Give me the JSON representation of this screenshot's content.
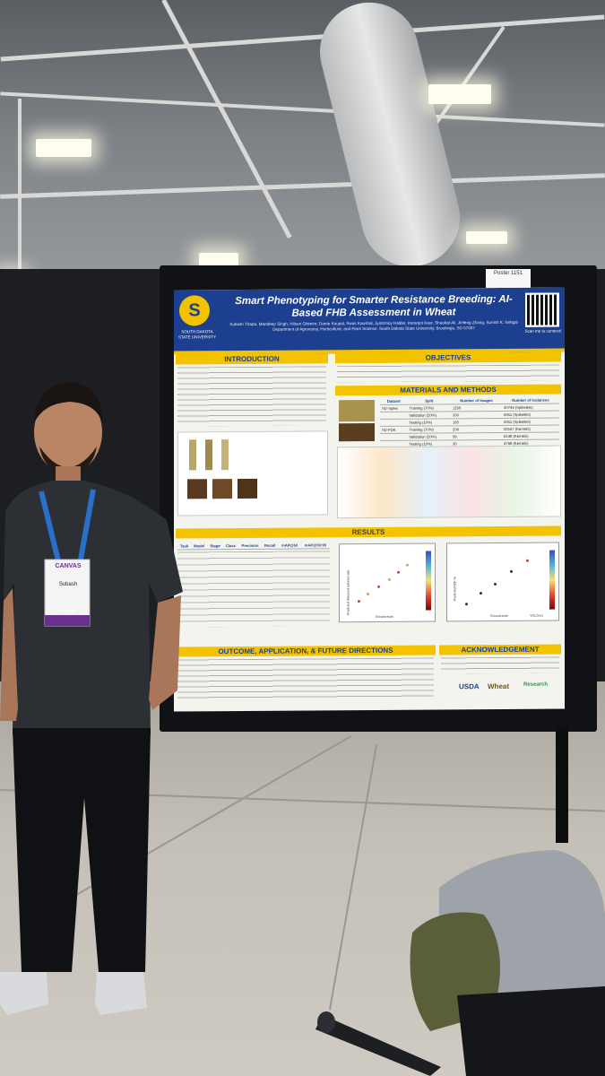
{
  "poster": {
    "title": "Smart Phenotyping for Smarter Resistance Breeding: AI-Based FHB Assessment in Wheat",
    "university": "SOUTH DAKOTA STATE UNIVERSITY",
    "authors": "Subash Thapa, Mandeep Singh, Hilson Ghimire, Dante Koupal, Swas Kaushal, Jyotirmoy Halder, Karanjot Kaur, Shaukat Ali, Jinfeng Zhang, Sunish K. Sehgal",
    "affiliation": "Department of Agronomy, Horticulture, and Plant Science, South Dakota State University, Brookings, SD 57007",
    "scan_text": "Scan me to connect!",
    "sections": {
      "introduction": "INTRODUCTION",
      "objectives": "OBJECTIVES",
      "materials": "MATERIALS AND METHODS",
      "results": "RESULTS",
      "outcome": "OUTCOME, APPLICATION, & FUTURE DIRECTIONS",
      "acknowledgement": "ACKNOWLEDGEMENT"
    },
    "dataset_table": {
      "headers": [
        "Dataset",
        "Split",
        "Number of Images",
        "Number of Instances"
      ],
      "rows": [
        [
          "SD-Spike",
          "Training (70%)",
          "1158",
          "20744 (Spikelets)"
        ],
        [
          "",
          "Validation (20%)",
          "330",
          "5911 (Spikelets)"
        ],
        [
          "",
          "Testing (10%)",
          "165",
          "2911 (Spikelets)"
        ],
        [
          "SD-FDK",
          "Training (70%)",
          "206",
          "28167 (Kernels)"
        ],
        [
          "",
          "Validation (20%)",
          "59",
          "8148 (Kernels)"
        ],
        [
          "",
          "Testing (10%)",
          "30",
          "4768 (Kernels)"
        ]
      ]
    },
    "results_table": {
      "headers": [
        "Task",
        "Model",
        "Stage",
        "Class",
        "Precision",
        "Recall",
        "mAP@50",
        "mAP@50:95"
      ]
    },
    "plot_labels": {
      "y_left": "Predicted diseased spikelet ratio",
      "y_right": "Predicted FDK %",
      "x": "Ground-truth",
      "model": "YOLOv11"
    },
    "sponsors": [
      "USDA",
      "Wheat",
      "Research"
    ]
  },
  "badge": {
    "event": "CANVAS",
    "name": "Subash",
    "role": "Panelist"
  },
  "poster_number": "Poster 1151"
}
